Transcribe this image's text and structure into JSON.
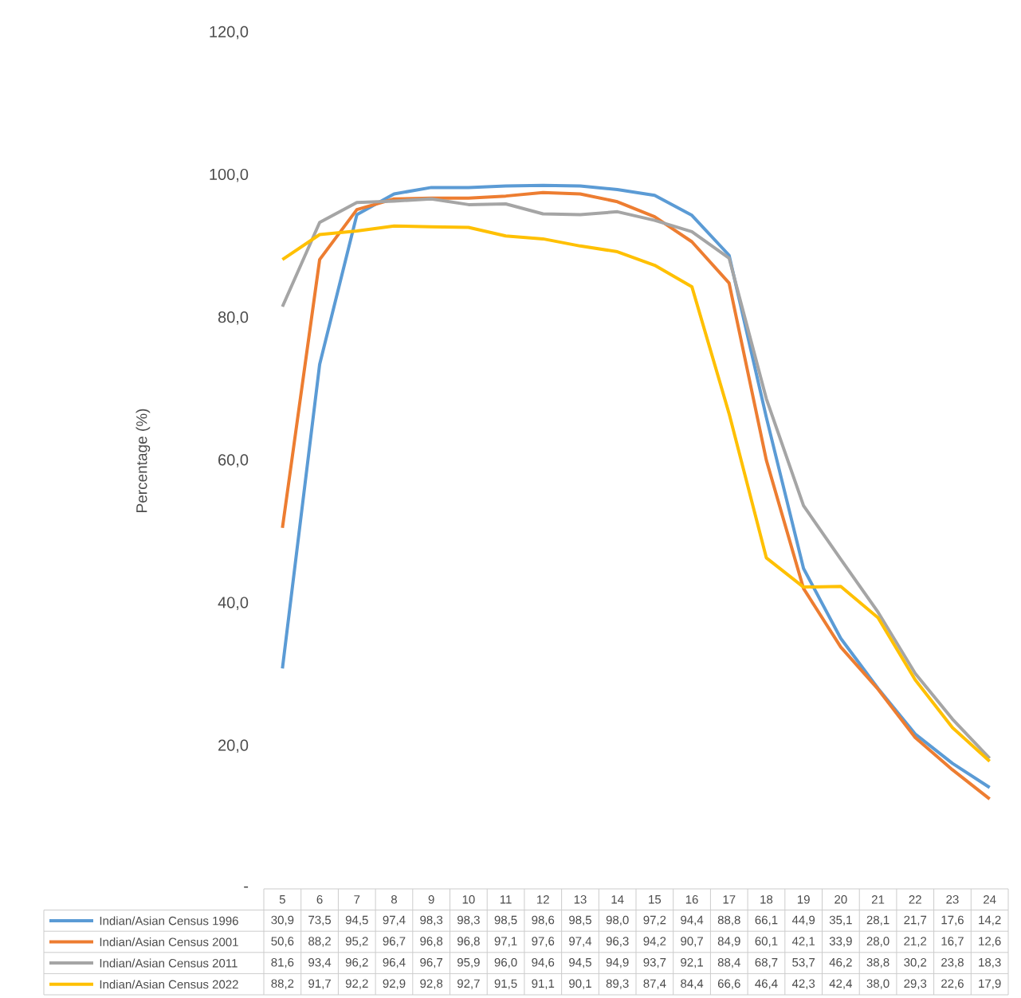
{
  "chart_data": {
    "type": "line",
    "ylabel": "Percentage (%)",
    "categories": [
      "5",
      "6",
      "7",
      "8",
      "9",
      "10",
      "11",
      "12",
      "13",
      "14",
      "15",
      "16",
      "17",
      "18",
      "19",
      "20",
      "21",
      "22",
      "23",
      "24"
    ],
    "ylim": [
      0,
      120
    ],
    "yticks": [
      {
        "value": 0,
        "label": "-"
      },
      {
        "value": 20,
        "label": "20,0"
      },
      {
        "value": 40,
        "label": "40,0"
      },
      {
        "value": 60,
        "label": "60,0"
      },
      {
        "value": 80,
        "label": "80,0"
      },
      {
        "value": 100,
        "label": "100,0"
      },
      {
        "value": 120,
        "label": "120,0"
      }
    ],
    "legend": "bottom",
    "series": [
      {
        "name": "Indian/Asian Census 1996",
        "color": "#5b9bd5",
        "values": [
          30.9,
          73.5,
          94.5,
          97.4,
          98.3,
          98.3,
          98.5,
          98.6,
          98.5,
          98.0,
          97.2,
          94.4,
          88.8,
          66.1,
          44.9,
          35.1,
          28.1,
          21.7,
          17.6,
          14.2
        ],
        "value_labels": [
          "30,9",
          "73,5",
          "94,5",
          "97,4",
          "98,3",
          "98,3",
          "98,5",
          "98,6",
          "98,5",
          "98,0",
          "97,2",
          "94,4",
          "88,8",
          "66,1",
          "44,9",
          "35,1",
          "28,1",
          "21,7",
          "17,6",
          "14,2"
        ]
      },
      {
        "name": "Indian/Asian Census 2001",
        "color": "#ed7d31",
        "values": [
          50.6,
          88.2,
          95.2,
          96.7,
          96.8,
          96.8,
          97.1,
          97.6,
          97.4,
          96.3,
          94.2,
          90.7,
          84.9,
          60.1,
          42.1,
          33.9,
          28.0,
          21.2,
          16.7,
          12.6
        ],
        "value_labels": [
          "50,6",
          "88,2",
          "95,2",
          "96,7",
          "96,8",
          "96,8",
          "97,1",
          "97,6",
          "97,4",
          "96,3",
          "94,2",
          "90,7",
          "84,9",
          "60,1",
          "42,1",
          "33,9",
          "28,0",
          "21,2",
          "16,7",
          "12,6"
        ]
      },
      {
        "name": "Indian/Asian Census 2011",
        "color": "#a5a5a5",
        "values": [
          81.6,
          93.4,
          96.2,
          96.4,
          96.7,
          95.9,
          96.0,
          94.6,
          94.5,
          94.9,
          93.7,
          92.1,
          88.4,
          68.7,
          53.7,
          46.2,
          38.8,
          30.2,
          23.8,
          18.3
        ],
        "value_labels": [
          "81,6",
          "93,4",
          "96,2",
          "96,4",
          "96,7",
          "95,9",
          "96,0",
          "94,6",
          "94,5",
          "94,9",
          "93,7",
          "92,1",
          "88,4",
          "68,7",
          "53,7",
          "46,2",
          "38,8",
          "30,2",
          "23,8",
          "18,3"
        ]
      },
      {
        "name": "Indian/Asian Census 2022",
        "color": "#ffc000",
        "values": [
          88.2,
          91.7,
          92.2,
          92.9,
          92.8,
          92.7,
          91.5,
          91.1,
          90.1,
          89.3,
          87.4,
          84.4,
          66.6,
          46.4,
          42.3,
          42.4,
          38.0,
          29.3,
          22.6,
          17.9
        ],
        "value_labels": [
          "88,2",
          "91,7",
          "92,2",
          "92,9",
          "92,8",
          "92,7",
          "91,5",
          "91,1",
          "90,1",
          "89,3",
          "87,4",
          "84,4",
          "66,6",
          "46,4",
          "42,3",
          "42,4",
          "38,0",
          "29,3",
          "22,6",
          "17,9"
        ]
      }
    ]
  }
}
